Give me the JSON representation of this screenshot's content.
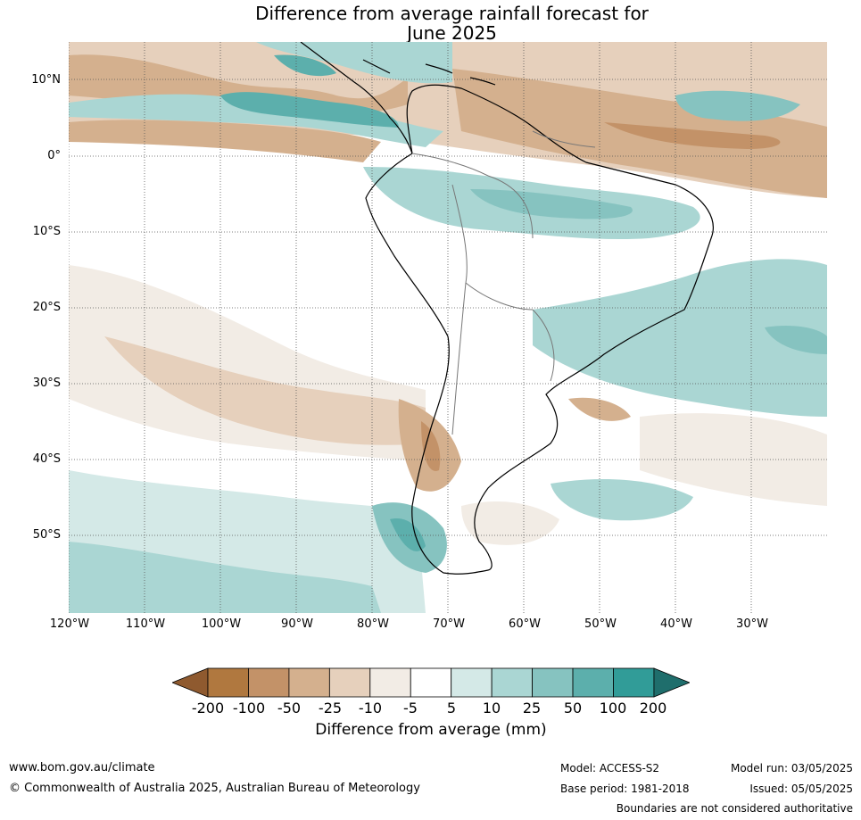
{
  "title_line1": "Difference from average rainfall forecast for",
  "title_line2": "June 2025",
  "lat_labels": [
    "10°N",
    "0°",
    "10°S",
    "20°S",
    "30°S",
    "40°S",
    "50°S"
  ],
  "lon_labels": [
    "120°W",
    "110°W",
    "100°W",
    "90°W",
    "80°W",
    "70°W",
    "60°W",
    "50°W",
    "40°W",
    "30°W"
  ],
  "colorbar": {
    "ticks": [
      "-200",
      "-100",
      "-50",
      "-25",
      "-10",
      "-5",
      "5",
      "10",
      "25",
      "50",
      "100",
      "200"
    ],
    "colors": [
      "#8f5a2f",
      "#b0783f",
      "#c39268",
      "#d4b08e",
      "#e6d0bc",
      "#f2ece5",
      "#ffffff",
      "#d4e9e7",
      "#aad6d3",
      "#86c3c0",
      "#5cafac",
      "#319c98",
      "#1f6e6c"
    ],
    "label": "Difference from average (mm)"
  },
  "footer": {
    "url": "www.bom.gov.au/climate",
    "copyright": "© Commonwealth of Australia 2025, Australian Bureau of Meteorology",
    "model": "Model: ACCESS-S2",
    "base_period": "Base period: 1981-2018",
    "model_run": "Model run: 03/05/2025",
    "issued": "Issued: 05/05/2025",
    "boundaries": "Boundaries are not considered authoritative"
  }
}
